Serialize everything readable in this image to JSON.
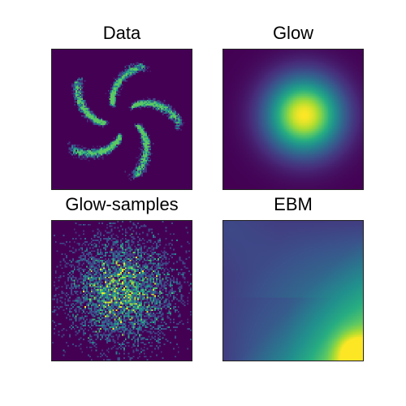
{
  "chart_data": [
    {
      "type": "heatmap",
      "title": "Data",
      "description_kind": "pinwheel density",
      "arms": 5,
      "xlabel": "",
      "ylabel": "",
      "colormap": "viridis",
      "grid": false
    },
    {
      "type": "heatmap",
      "title": "Glow",
      "description_kind": "centered gaussian density",
      "peak_position": [
        0.58,
        0.47
      ],
      "colormap": "viridis",
      "grid": false
    },
    {
      "type": "heatmap",
      "title": "Glow-samples",
      "description_kind": "sample histogram",
      "colormap": "viridis",
      "grid": false
    },
    {
      "type": "heatmap",
      "title": "EBM",
      "description_kind": "energy landscape",
      "peak_region": "bottom-right",
      "colormap": "viridis",
      "grid": false
    }
  ],
  "colors": {
    "viridis_low": "#440154",
    "viridis_mid": "#21918c",
    "viridis_high": "#fde725"
  }
}
